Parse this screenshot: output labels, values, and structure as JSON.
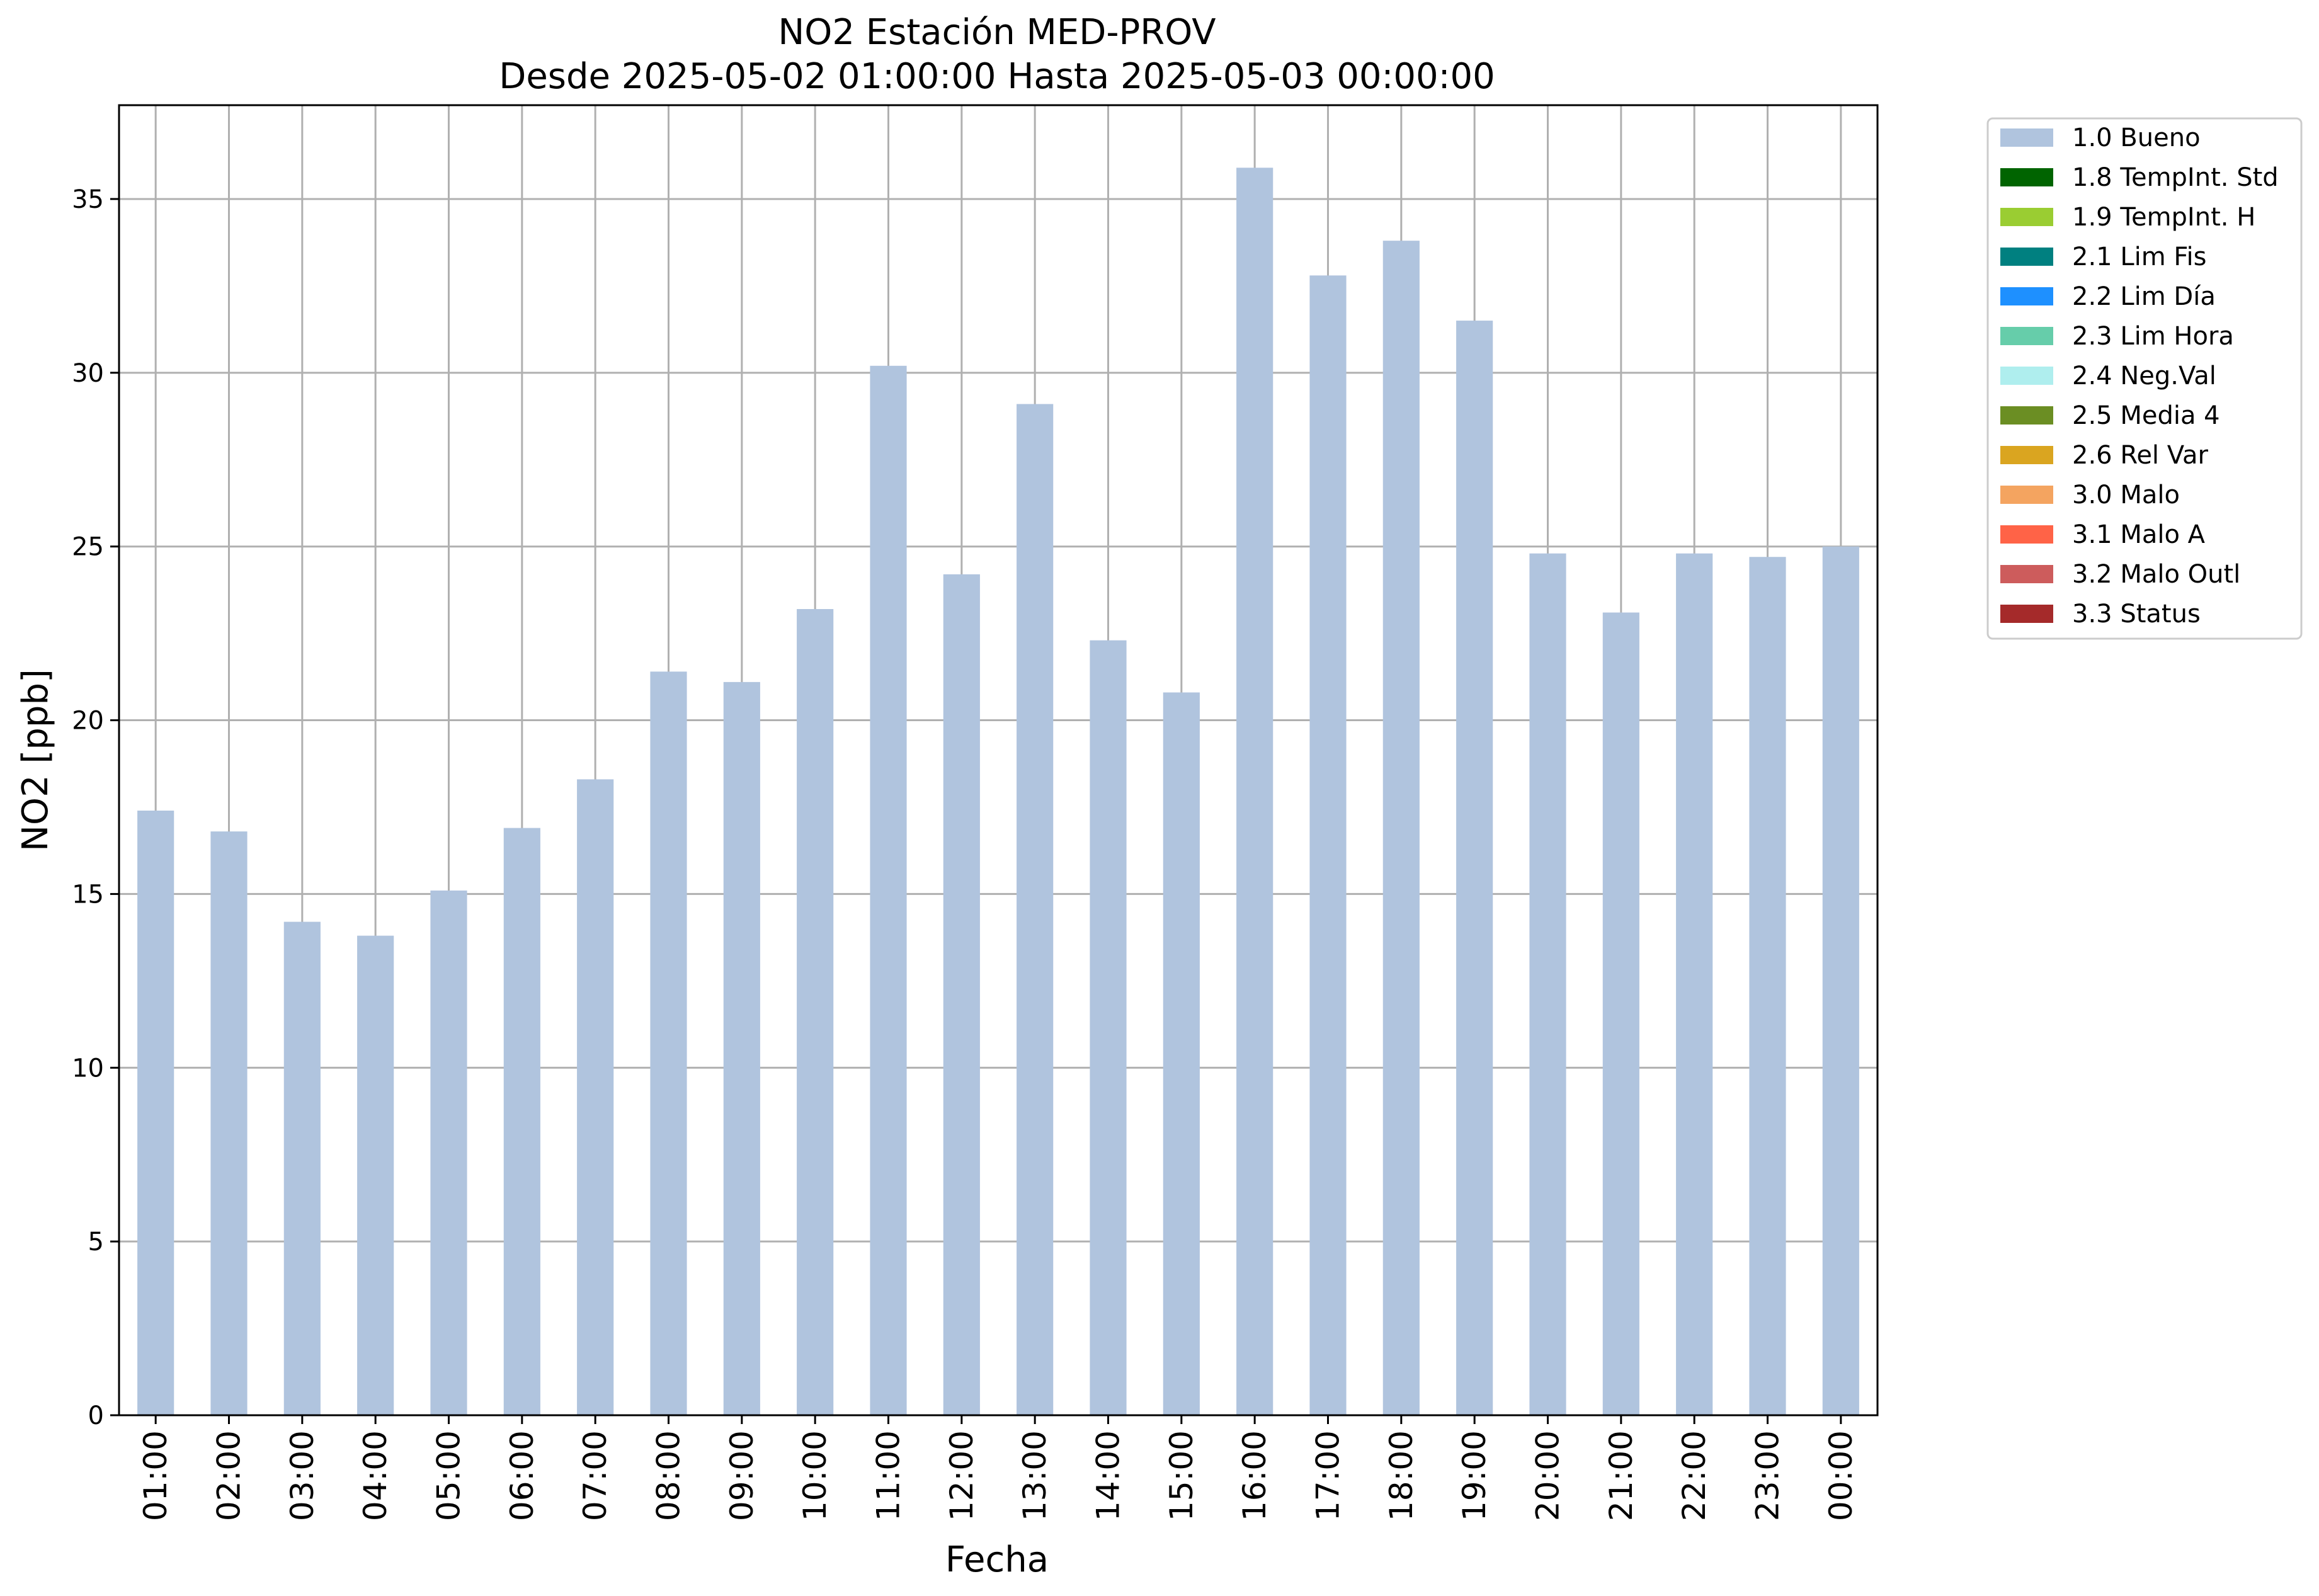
{
  "chart_data": {
    "type": "bar",
    "title": "NO2 Estación MED-PROV",
    "subtitle": "Desde 2025-05-02 01:00:00 Hasta 2025-05-03 00:00:00",
    "xlabel": "Fecha",
    "ylabel": "NO2 [ppb]",
    "ylim": [
      0,
      37.7
    ],
    "yticks": [
      0,
      5,
      10,
      15,
      20,
      25,
      30,
      35
    ],
    "grid": true,
    "legend_position": "outside-top-right",
    "categories": [
      "01:00",
      "02:00",
      "03:00",
      "04:00",
      "05:00",
      "06:00",
      "07:00",
      "08:00",
      "09:00",
      "10:00",
      "11:00",
      "12:00",
      "13:00",
      "14:00",
      "15:00",
      "16:00",
      "17:00",
      "18:00",
      "19:00",
      "20:00",
      "21:00",
      "22:00",
      "23:00",
      "00:00"
    ],
    "series": [
      {
        "name": "1.0 Bueno",
        "color": "#b0c4de",
        "values": [
          17.4,
          16.8,
          14.2,
          13.8,
          15.1,
          16.9,
          18.3,
          21.4,
          21.1,
          23.2,
          30.2,
          24.2,
          29.1,
          22.3,
          20.8,
          35.9,
          32.8,
          33.8,
          31.5,
          24.8,
          23.1,
          24.8,
          24.7,
          25.0
        ]
      }
    ],
    "legend": [
      {
        "label": "1.0 Bueno",
        "color": "#b0c4de"
      },
      {
        "label": "1.8 TempInt. Std",
        "color": "#006400"
      },
      {
        "label": "1.9 TempInt. H",
        "color": "#9acd32"
      },
      {
        "label": "2.1 Lim Fis",
        "color": "#008080"
      },
      {
        "label": "2.2 Lim Día",
        "color": "#1e90ff"
      },
      {
        "label": "2.3 Lim Hora",
        "color": "#66cdaa"
      },
      {
        "label": "2.4 Neg.Val",
        "color": "#afeeee"
      },
      {
        "label": "2.5 Media 4",
        "color": "#6b8e23"
      },
      {
        "label": "2.6 Rel Var",
        "color": "#daa520"
      },
      {
        "label": "3.0 Malo",
        "color": "#f4a460"
      },
      {
        "label": "3.1 Malo A",
        "color": "#ff6347"
      },
      {
        "label": "3.2 Malo Outl",
        "color": "#cd5c5c"
      },
      {
        "label": "3.3 Status",
        "color": "#a52a2a"
      }
    ],
    "grid_color": "#b0b0b0"
  }
}
